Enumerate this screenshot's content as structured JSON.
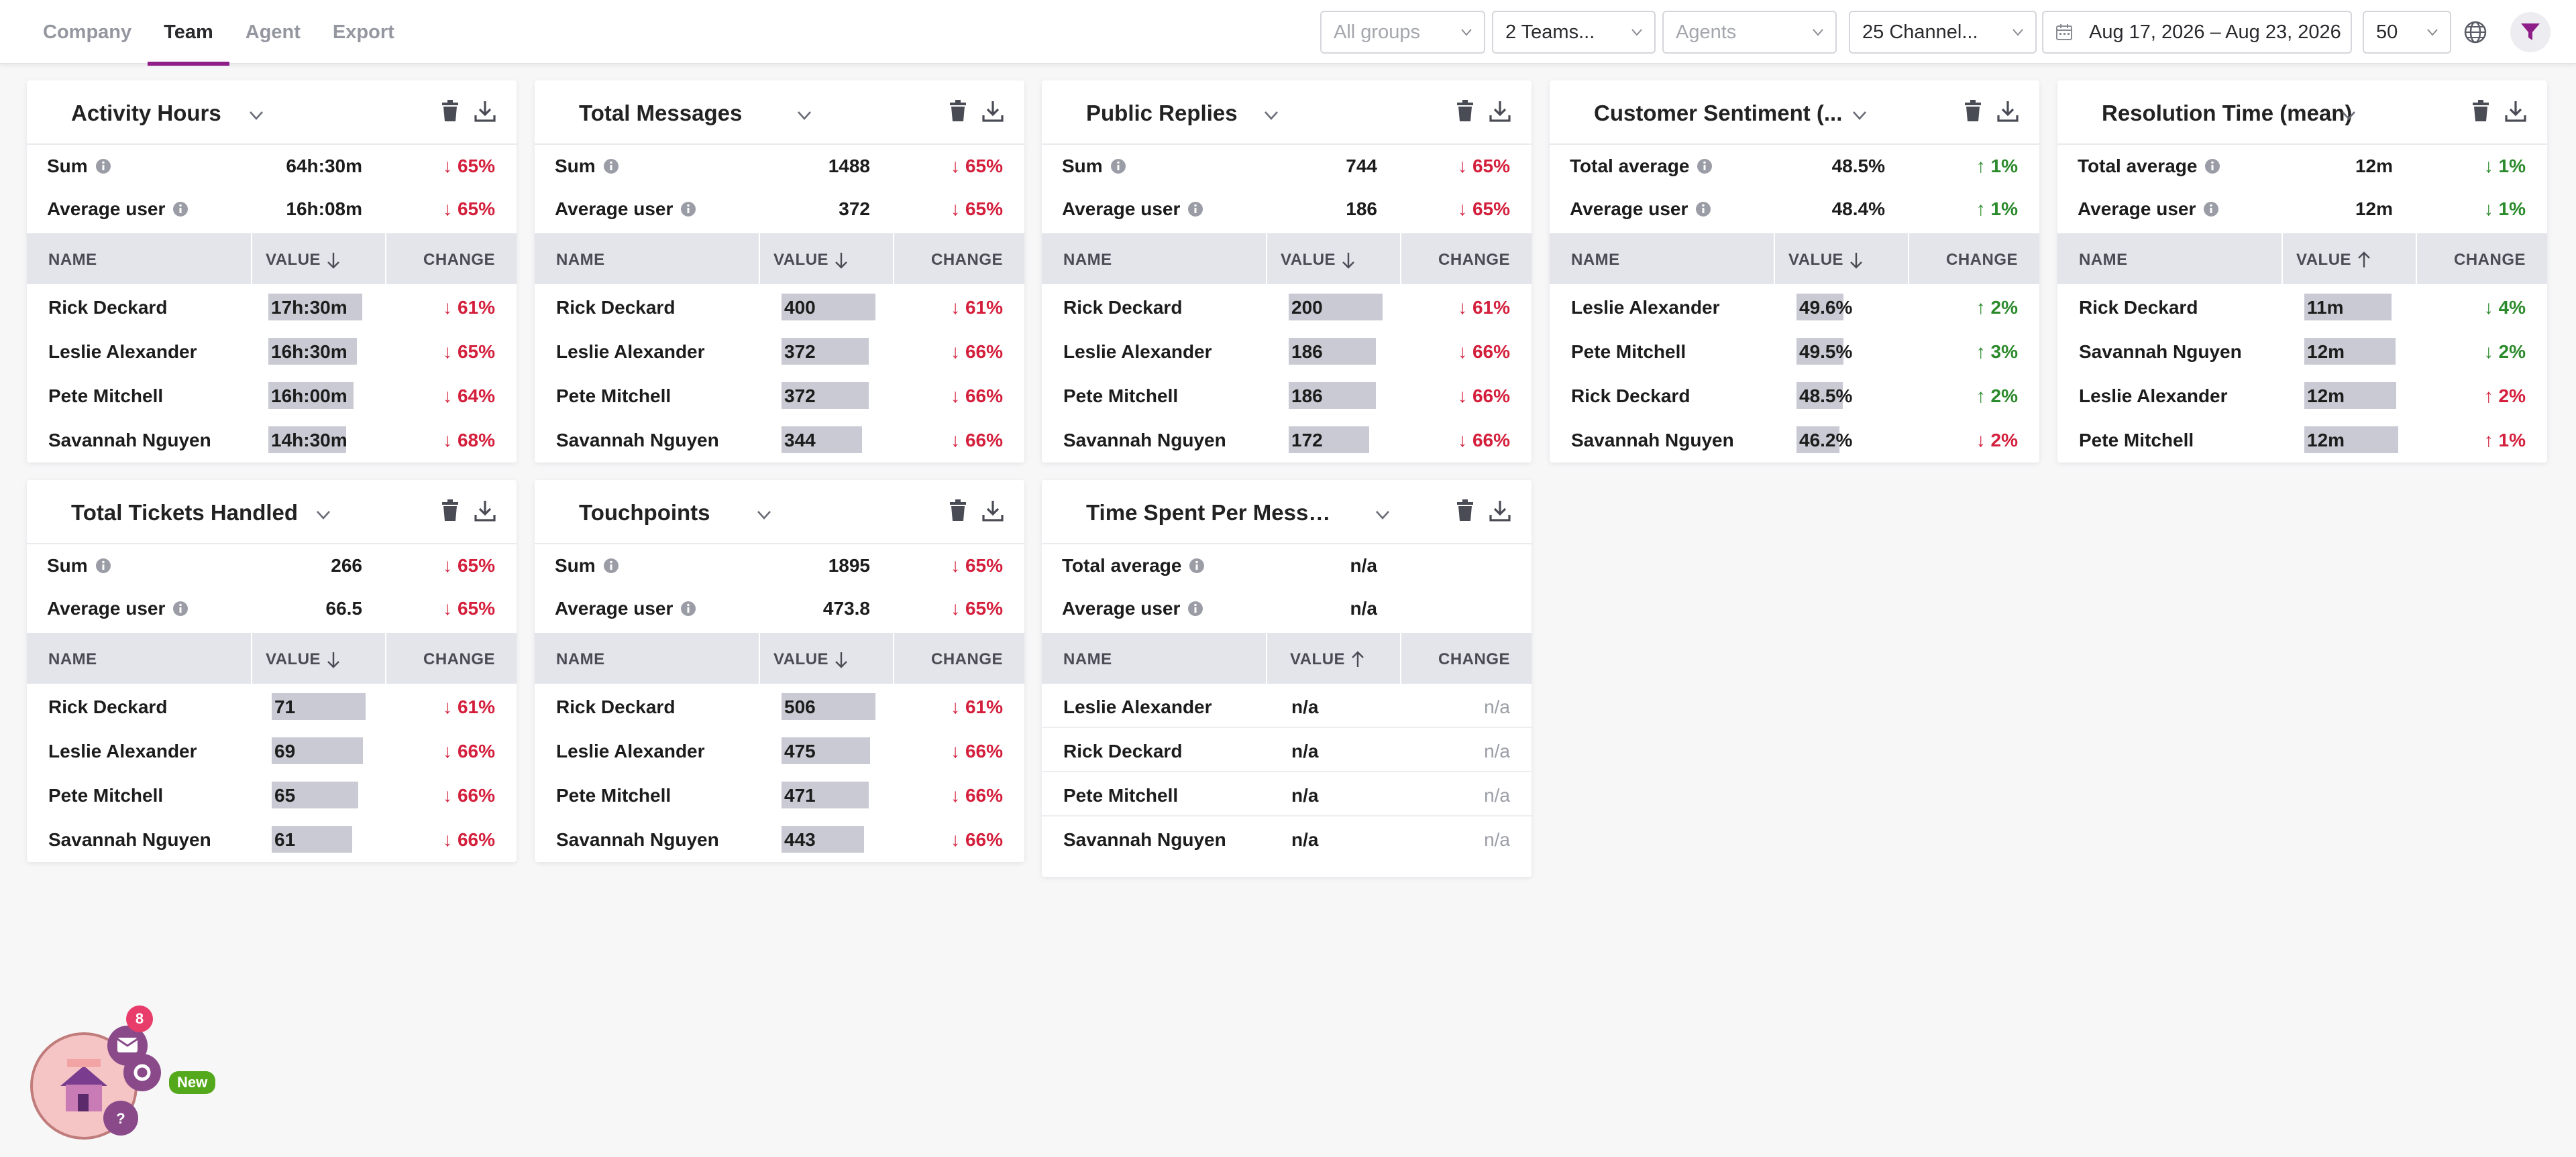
{
  "tabs": [
    {
      "label": "Company",
      "active": false
    },
    {
      "label": "Team",
      "active": true
    },
    {
      "label": "Agent",
      "active": false
    },
    {
      "label": "Export",
      "active": false
    }
  ],
  "filters": {
    "groups_placeholder": "All groups",
    "teams_value": "2 Teams...",
    "agents_placeholder": "Agents",
    "channels_value": "25 Channel...",
    "date_range": "Aug 17, 2026 – Aug 23, 2026",
    "page_size": "50"
  },
  "colors": {
    "accent": "#8e1f89",
    "negative": "#d41f3c",
    "positive": "#2b8a2b",
    "bar": "#c9cad3",
    "header_bg": "#e4e5ea"
  },
  "table_headers": {
    "name": "NAME",
    "value": "VALUE",
    "change": "CHANGE"
  },
  "cards": [
    {
      "title": "Activity Hours",
      "sort": "down",
      "summary": [
        {
          "label": "Sum",
          "value": "64h:30m",
          "change": "↓ 65%",
          "dir": "down"
        },
        {
          "label": "Average user",
          "value": "16h:08m",
          "change": "↓ 65%",
          "dir": "down"
        }
      ],
      "rows": [
        {
          "name": "Rick Deckard",
          "value": "17h:30m",
          "fill": 1.0,
          "change": "↓ 61%",
          "dir": "down"
        },
        {
          "name": "Leslie Alexander",
          "value": "16h:30m",
          "fill": 0.94,
          "change": "↓ 65%",
          "dir": "down"
        },
        {
          "name": "Pete Mitchell",
          "value": "16h:00m",
          "fill": 0.91,
          "change": "↓ 64%",
          "dir": "down"
        },
        {
          "name": "Savannah Nguyen",
          "value": "14h:30m",
          "fill": 0.83,
          "change": "↓ 68%",
          "dir": "down"
        }
      ]
    },
    {
      "title": "Total Messages",
      "sort": "down",
      "summary": [
        {
          "label": "Sum",
          "value": "1488",
          "change": "↓ 65%",
          "dir": "down"
        },
        {
          "label": "Average user",
          "value": "372",
          "change": "↓ 65%",
          "dir": "down"
        }
      ],
      "rows": [
        {
          "name": "Rick Deckard",
          "value": "400",
          "fill": 1.0,
          "change": "↓ 61%",
          "dir": "down"
        },
        {
          "name": "Leslie Alexander",
          "value": "372",
          "fill": 0.93,
          "change": "↓ 66%",
          "dir": "down"
        },
        {
          "name": "Pete Mitchell",
          "value": "372",
          "fill": 0.93,
          "change": "↓ 66%",
          "dir": "down"
        },
        {
          "name": "Savannah Nguyen",
          "value": "344",
          "fill": 0.86,
          "change": "↓ 66%",
          "dir": "down"
        }
      ]
    },
    {
      "title": "Public Replies",
      "sort": "down",
      "summary": [
        {
          "label": "Sum",
          "value": "744",
          "change": "↓ 65%",
          "dir": "down"
        },
        {
          "label": "Average user",
          "value": "186",
          "change": "↓ 65%",
          "dir": "down"
        }
      ],
      "rows": [
        {
          "name": "Rick Deckard",
          "value": "200",
          "fill": 1.0,
          "change": "↓ 61%",
          "dir": "down"
        },
        {
          "name": "Leslie Alexander",
          "value": "186",
          "fill": 0.93,
          "change": "↓ 66%",
          "dir": "down"
        },
        {
          "name": "Pete Mitchell",
          "value": "186",
          "fill": 0.93,
          "change": "↓ 66%",
          "dir": "down"
        },
        {
          "name": "Savannah Nguyen",
          "value": "172",
          "fill": 0.86,
          "change": "↓ 66%",
          "dir": "down"
        }
      ]
    },
    {
      "title": "Customer Sentiment (...",
      "sort": "down",
      "summary": [
        {
          "label": "Total average",
          "value": "48.5%",
          "change": "↑ 1%",
          "dir": "up"
        },
        {
          "label": "Average user",
          "value": "48.4%",
          "change": "↑ 1%",
          "dir": "up"
        }
      ],
      "rows": [
        {
          "name": "Leslie Alexander",
          "value": "49.6%",
          "fill": 0.5,
          "change": "↑ 2%",
          "dir": "up"
        },
        {
          "name": "Pete Mitchell",
          "value": "49.5%",
          "fill": 0.5,
          "change": "↑ 3%",
          "dir": "up"
        },
        {
          "name": "Rick Deckard",
          "value": "48.5%",
          "fill": 0.49,
          "change": "↑ 2%",
          "dir": "up"
        },
        {
          "name": "Savannah Nguyen",
          "value": "46.2%",
          "fill": 0.46,
          "change": "↓ 2%",
          "dir": "down"
        }
      ]
    },
    {
      "title": "Resolution Time (mean)",
      "sort": "up",
      "summary": [
        {
          "label": "Total average",
          "value": "12m",
          "change": "↓ 1%",
          "dir": "up"
        },
        {
          "label": "Average user",
          "value": "12m",
          "change": "↓ 1%",
          "dir": "up"
        }
      ],
      "rows": [
        {
          "name": "Rick Deckard",
          "value": "11m",
          "fill": 0.93,
          "change": "↓ 4%",
          "dir": "up"
        },
        {
          "name": "Savannah Nguyen",
          "value": "12m",
          "fill": 0.97,
          "change": "↓ 2%",
          "dir": "up"
        },
        {
          "name": "Leslie Alexander",
          "value": "12m",
          "fill": 0.98,
          "change": "↑ 2%",
          "dir": "down"
        },
        {
          "name": "Pete Mitchell",
          "value": "12m",
          "fill": 1.0,
          "change": "↑ 1%",
          "dir": "down"
        }
      ]
    },
    {
      "title": "Total Tickets Handled",
      "sort": "down",
      "summary": [
        {
          "label": "Sum",
          "value": "266",
          "change": "↓ 65%",
          "dir": "down"
        },
        {
          "label": "Average user",
          "value": "66.5",
          "change": "↓ 65%",
          "dir": "down"
        }
      ],
      "rows": [
        {
          "name": "Rick Deckard",
          "value": "71",
          "fill": 1.0,
          "change": "↓ 61%",
          "dir": "down"
        },
        {
          "name": "Leslie Alexander",
          "value": "69",
          "fill": 0.97,
          "change": "↓ 66%",
          "dir": "down"
        },
        {
          "name": "Pete Mitchell",
          "value": "65",
          "fill": 0.92,
          "change": "↓ 66%",
          "dir": "down"
        },
        {
          "name": "Savannah Nguyen",
          "value": "61",
          "fill": 0.86,
          "change": "↓ 66%",
          "dir": "down"
        }
      ]
    },
    {
      "title": "Touchpoints",
      "sort": "down",
      "summary": [
        {
          "label": "Sum",
          "value": "1895",
          "change": "↓ 65%",
          "dir": "down"
        },
        {
          "label": "Average user",
          "value": "473.8",
          "change": "↓ 65%",
          "dir": "down"
        }
      ],
      "rows": [
        {
          "name": "Rick Deckard",
          "value": "506",
          "fill": 1.0,
          "change": "↓ 61%",
          "dir": "down"
        },
        {
          "name": "Leslie Alexander",
          "value": "475",
          "fill": 0.94,
          "change": "↓ 66%",
          "dir": "down"
        },
        {
          "name": "Pete Mitchell",
          "value": "471",
          "fill": 0.93,
          "change": "↓ 66%",
          "dir": "down"
        },
        {
          "name": "Savannah Nguyen",
          "value": "443",
          "fill": 0.88,
          "change": "↓ 66%",
          "dir": "down"
        }
      ]
    },
    {
      "title": "Time Spent Per Messag...",
      "sort": "up",
      "empty": true,
      "summary": [
        {
          "label": "Total average",
          "value": "n/a",
          "change": "",
          "dir": ""
        },
        {
          "label": "Average user",
          "value": "n/a",
          "change": "",
          "dir": ""
        }
      ],
      "rows": [
        {
          "name": "Leslie Alexander",
          "value": "n/a",
          "fill": 0,
          "change": "n/a",
          "dir": "grey"
        },
        {
          "name": "Rick Deckard",
          "value": "n/a",
          "fill": 0,
          "change": "n/a",
          "dir": "grey"
        },
        {
          "name": "Pete Mitchell",
          "value": "n/a",
          "fill": 0,
          "change": "n/a",
          "dir": "grey"
        },
        {
          "name": "Savannah Nguyen",
          "value": "n/a",
          "fill": 0,
          "change": "n/a",
          "dir": "grey"
        }
      ]
    }
  ],
  "widget": {
    "notification_count": "8",
    "new_label": "New"
  }
}
